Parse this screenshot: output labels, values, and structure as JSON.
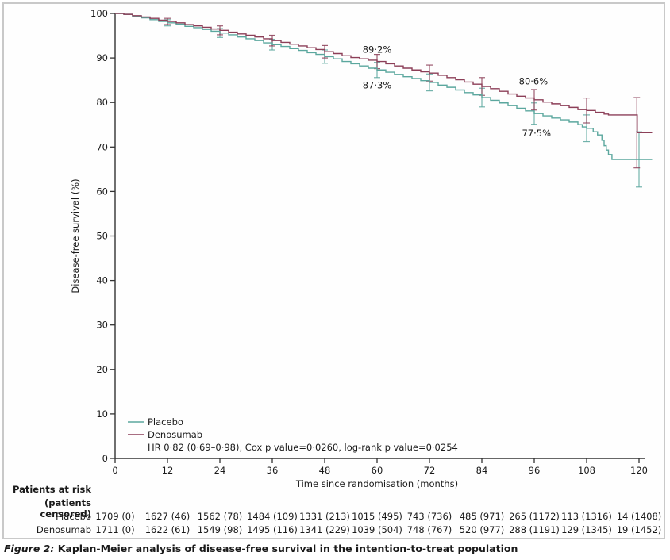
{
  "figure": {
    "caption_prefix": "Figure 2:",
    "caption_text": "Kaplan-Meier analysis of disease-free survival in the intention-to-treat population"
  },
  "chart_data": {
    "type": "line",
    "subtype": "kaplan-meier-step",
    "title": "",
    "xlabel": "Time since randomisation (months)",
    "ylabel": "Disease-free survival (%)",
    "xlim": [
      0,
      123
    ],
    "ylim": [
      0,
      100
    ],
    "xticks": [
      0,
      12,
      24,
      36,
      48,
      60,
      72,
      84,
      96,
      108,
      120
    ],
    "yticks": [
      0,
      10,
      20,
      30,
      40,
      50,
      60,
      70,
      80,
      90,
      100
    ],
    "grid": false,
    "legend_position": "bottom-left",
    "legend_note": "HR 0·82 (0·69–0·98), Cox p value=0·0260, log-rank p value=0·0254",
    "series": [
      {
        "name": "Placebo",
        "color": "#5ba79e",
        "points": [
          [
            0,
            100
          ],
          [
            2,
            99.8
          ],
          [
            4,
            99.4
          ],
          [
            6,
            99.0
          ],
          [
            8,
            98.6
          ],
          [
            10,
            98.2
          ],
          [
            12,
            97.9
          ],
          [
            14,
            97.6
          ],
          [
            16,
            97.1
          ],
          [
            18,
            96.8
          ],
          [
            20,
            96.4
          ],
          [
            22,
            96.0
          ],
          [
            24,
            95.6
          ],
          [
            26,
            95.2
          ],
          [
            28,
            94.7
          ],
          [
            30,
            94.3
          ],
          [
            32,
            93.9
          ],
          [
            34,
            93.4
          ],
          [
            36,
            93.0
          ],
          [
            38,
            92.6
          ],
          [
            40,
            92.1
          ],
          [
            42,
            91.7
          ],
          [
            44,
            91.2
          ],
          [
            46,
            90.8
          ],
          [
            48,
            90.3
          ],
          [
            50,
            89.8
          ],
          [
            52,
            89.2
          ],
          [
            54,
            88.7
          ],
          [
            56,
            88.2
          ],
          [
            58,
            87.7
          ],
          [
            60,
            87.3
          ],
          [
            62,
            86.8
          ],
          [
            64,
            86.3
          ],
          [
            66,
            85.8
          ],
          [
            68,
            85.4
          ],
          [
            70,
            84.9
          ],
          [
            72,
            84.5
          ],
          [
            74,
            83.9
          ],
          [
            76,
            83.4
          ],
          [
            78,
            82.8
          ],
          [
            80,
            82.2
          ],
          [
            82,
            81.7
          ],
          [
            84,
            81.1
          ],
          [
            86,
            80.5
          ],
          [
            88,
            79.9
          ],
          [
            90,
            79.3
          ],
          [
            92,
            78.7
          ],
          [
            94,
            78.1
          ],
          [
            96,
            77.5
          ],
          [
            98,
            77.0
          ],
          [
            100,
            76.5
          ],
          [
            102,
            76.1
          ],
          [
            104,
            75.6
          ],
          [
            106,
            75.0
          ],
          [
            107,
            74.5
          ],
          [
            108,
            74.2
          ],
          [
            109.5,
            73.4
          ],
          [
            110.5,
            72.7
          ],
          [
            111.5,
            71.5
          ],
          [
            112,
            70.3
          ],
          [
            112.5,
            69.3
          ],
          [
            113,
            68.3
          ],
          [
            113.8,
            67.2
          ],
          [
            123,
            67.2
          ]
        ],
        "errorbars": [
          [
            12,
            97.2,
            98.6
          ],
          [
            24,
            94.6,
            96.6
          ],
          [
            36,
            91.8,
            94.2
          ],
          [
            48,
            88.8,
            91.8
          ],
          [
            60,
            85.6,
            89.0
          ],
          [
            72,
            82.6,
            86.4
          ],
          [
            84,
            79.0,
            83.2
          ],
          [
            96,
            75.1,
            79.9
          ],
          [
            108,
            71.2,
            77.2
          ],
          [
            120,
            61.0,
            73.4
          ]
        ]
      },
      {
        "name": "Denosumab",
        "color": "#8c3f58",
        "points": [
          [
            0,
            100
          ],
          [
            2,
            99.8
          ],
          [
            4,
            99.5
          ],
          [
            6,
            99.2
          ],
          [
            8,
            98.9
          ],
          [
            10,
            98.5
          ],
          [
            12,
            98.2
          ],
          [
            14,
            97.9
          ],
          [
            16,
            97.5
          ],
          [
            18,
            97.2
          ],
          [
            20,
            96.9
          ],
          [
            22,
            96.5
          ],
          [
            24,
            96.2
          ],
          [
            26,
            95.8
          ],
          [
            28,
            95.4
          ],
          [
            30,
            95.1
          ],
          [
            32,
            94.7
          ],
          [
            34,
            94.3
          ],
          [
            36,
            93.9
          ],
          [
            38,
            93.5
          ],
          [
            40,
            93.1
          ],
          [
            42,
            92.7
          ],
          [
            44,
            92.3
          ],
          [
            46,
            91.9
          ],
          [
            48,
            91.4
          ],
          [
            50,
            91.0
          ],
          [
            52,
            90.5
          ],
          [
            54,
            90.1
          ],
          [
            56,
            89.8
          ],
          [
            58,
            89.5
          ],
          [
            60,
            89.2
          ],
          [
            62,
            88.7
          ],
          [
            64,
            88.2
          ],
          [
            66,
            87.7
          ],
          [
            68,
            87.3
          ],
          [
            70,
            86.9
          ],
          [
            72,
            86.6
          ],
          [
            74,
            86.1
          ],
          [
            76,
            85.6
          ],
          [
            78,
            85.1
          ],
          [
            80,
            84.6
          ],
          [
            82,
            84.1
          ],
          [
            84,
            83.6
          ],
          [
            86,
            83.1
          ],
          [
            88,
            82.5
          ],
          [
            90,
            81.9
          ],
          [
            92,
            81.4
          ],
          [
            94,
            81.0
          ],
          [
            96,
            80.6
          ],
          [
            98,
            80.1
          ],
          [
            100,
            79.7
          ],
          [
            102,
            79.3
          ],
          [
            104,
            78.9
          ],
          [
            106,
            78.4
          ],
          [
            108,
            78.2
          ],
          [
            110,
            77.8
          ],
          [
            112,
            77.4
          ],
          [
            113,
            77.2
          ],
          [
            119.6,
            73.2
          ],
          [
            123,
            73.2
          ]
        ],
        "errorbars": [
          [
            12,
            97.5,
            98.9
          ],
          [
            24,
            95.2,
            97.2
          ],
          [
            36,
            92.7,
            95.1
          ],
          [
            48,
            90.0,
            92.8
          ],
          [
            60,
            87.6,
            90.8
          ],
          [
            72,
            84.8,
            88.4
          ],
          [
            84,
            81.6,
            85.6
          ],
          [
            96,
            78.3,
            82.9
          ],
          [
            108,
            75.4,
            81.0
          ],
          [
            119.5,
            65.3,
            81.1
          ]
        ]
      }
    ],
    "annotations": [
      {
        "text": "89·2%",
        "x": 60,
        "y": 91.9,
        "series": "Denosumab"
      },
      {
        "text": "87·3%",
        "x": 60,
        "y": 83.9,
        "series": "Placebo"
      },
      {
        "text": "80·6%",
        "x": 95.8,
        "y": 84.8,
        "series": "Denosumab"
      },
      {
        "text": "77·5%",
        "x": 96.5,
        "y": 73.1,
        "series": "Placebo"
      }
    ]
  },
  "risk_table": {
    "header_line1": "Patients at risk",
    "header_line2": "(patients censored)",
    "columns_months": [
      0,
      12,
      24,
      36,
      48,
      60,
      72,
      84,
      96,
      108,
      120
    ],
    "rows": [
      {
        "label": "Placebo",
        "values": [
          "1709 (0)",
          "1627 (46)",
          "1562 (78)",
          "1484 (109)",
          "1331 (213)",
          "1015 (495)",
          "743 (736)",
          "485 (971)",
          "265 (1172)",
          "113 (1316)",
          "14 (1408)"
        ]
      },
      {
        "label": "Denosumab",
        "values": [
          "1711 (0)",
          "1622 (61)",
          "1549 (98)",
          "1495 (116)",
          "1341 (229)",
          "1039 (504)",
          "748 (767)",
          "520 (977)",
          "288 (1191)",
          "129 (1345)",
          "19 (1452)"
        ]
      }
    ]
  }
}
